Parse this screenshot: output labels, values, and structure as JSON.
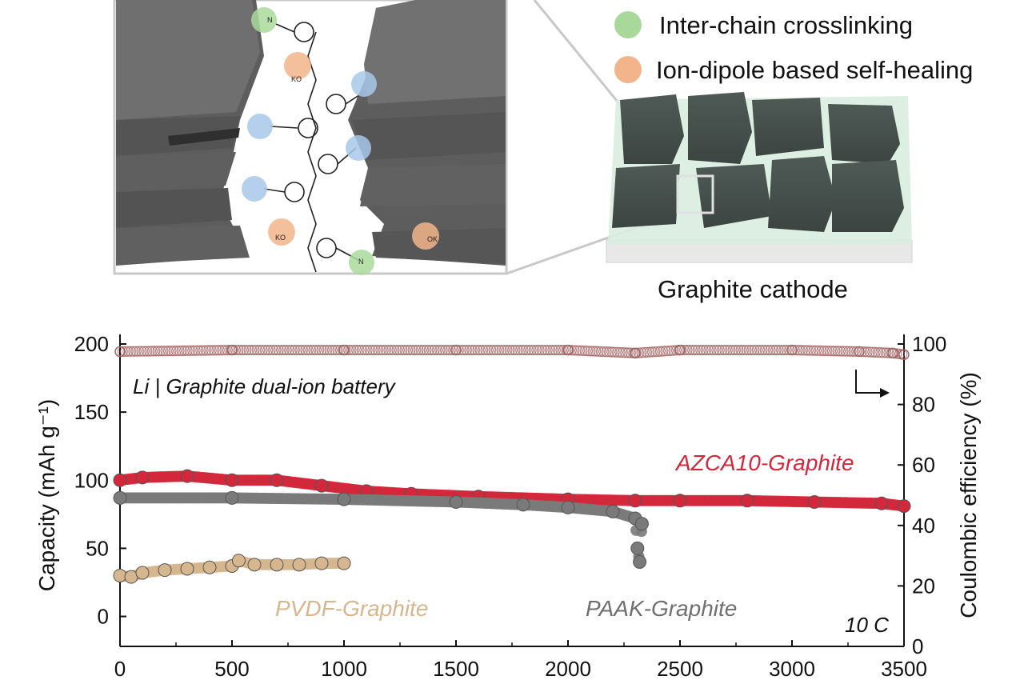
{
  "illustration": {
    "legend": [
      {
        "label": "Inter-chain crosslinking",
        "color": "#a9d99a"
      },
      {
        "label": "Ion-dipole based self-healing",
        "color": "#f2b48a"
      }
    ],
    "electrode_caption": "Graphite cathode",
    "molecule_labels": {
      "ko": "KO",
      "ok": "OK",
      "n": "N"
    }
  },
  "chart_data": {
    "type": "scatter",
    "annotation": "Li | Graphite dual-ion battery",
    "rate_label": "10 C",
    "xlim": [
      0,
      3500
    ],
    "ylim_left": [
      -22,
      200
    ],
    "ylim_right": [
      0,
      100
    ],
    "ylabel_left": "Capacity (mAh g⁻¹)",
    "ylabel_right": "Coulombic efficiency (%)",
    "x_ticks": [
      0,
      500,
      1000,
      1500,
      2000,
      2500,
      3000,
      3500
    ],
    "y_ticks_left": [
      0,
      50,
      100,
      150,
      200
    ],
    "y_ticks_right": [
      0,
      20,
      40,
      60,
      80,
      100
    ],
    "series": [
      {
        "name": "AZCA10-Graphite",
        "color": "#d3283c",
        "axis": "left",
        "x": [
          0,
          100,
          300,
          500,
          700,
          900,
          1100,
          1300,
          1600,
          2000,
          2300,
          2500,
          2800,
          3100,
          3400,
          3500
        ],
        "y": [
          100,
          102,
          103,
          100,
          100,
          96,
          92,
          90,
          88,
          86,
          85,
          85,
          85,
          84,
          83,
          81
        ]
      },
      {
        "name": "PAAK-Graphite",
        "color": "#7a7a7a",
        "axis": "left",
        "x": [
          0,
          500,
          1000,
          1500,
          1800,
          2000,
          2200,
          2300,
          2310,
          2320,
          2330
        ],
        "y": [
          87,
          87,
          86,
          84,
          82,
          80,
          77,
          72,
          50,
          40,
          68
        ]
      },
      {
        "name": "PVDF-Graphite",
        "color": "#d6b68e",
        "axis": "left",
        "x": [
          0,
          50,
          100,
          200,
          300,
          400,
          500,
          530,
          600,
          700,
          800,
          900,
          1000
        ],
        "y": [
          30,
          29,
          32,
          34,
          35,
          36,
          37,
          41,
          38,
          38,
          38,
          39,
          39
        ]
      },
      {
        "name": "Coulombic efficiency",
        "color": "#a06060",
        "axis": "right",
        "x": [
          0,
          500,
          1000,
          1500,
          2000,
          2300,
          2500,
          3000,
          3300,
          3450,
          3500
        ],
        "y": [
          97.5,
          98,
          98,
          98,
          98,
          97,
          98,
          98,
          97.5,
          97,
          96.5
        ]
      }
    ]
  }
}
